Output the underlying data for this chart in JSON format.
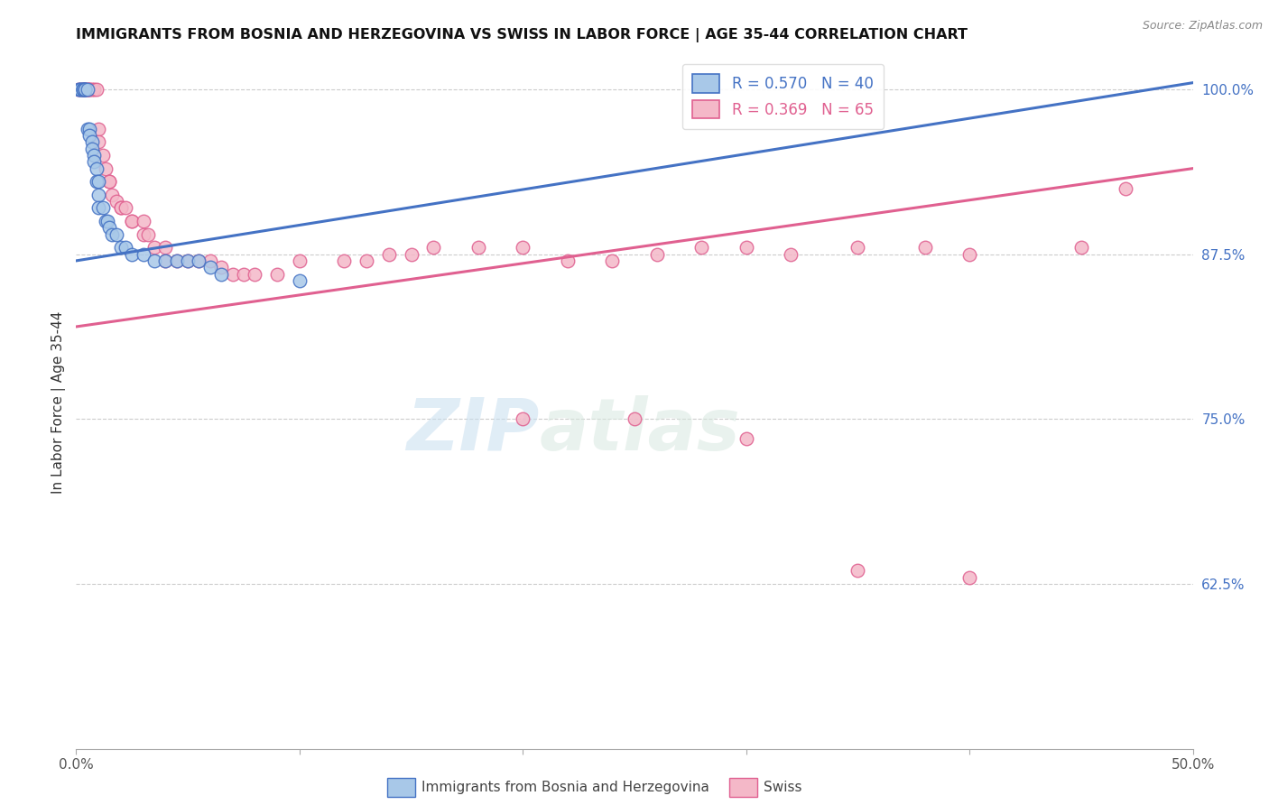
{
  "title": "IMMIGRANTS FROM BOSNIA AND HERZEGOVINA VS SWISS IN LABOR FORCE | AGE 35-44 CORRELATION CHART",
  "source": "Source: ZipAtlas.com",
  "ylabel": "In Labor Force | Age 35-44",
  "xlim": [
    0.0,
    0.5
  ],
  "ylim": [
    0.5,
    1.025
  ],
  "xtick_positions": [
    0.0,
    0.1,
    0.2,
    0.3,
    0.4,
    0.5
  ],
  "xticklabels": [
    "0.0%",
    "",
    "",
    "",
    "",
    "50.0%"
  ],
  "yticks_right": [
    0.625,
    0.75,
    0.875,
    1.0
  ],
  "ytick_labels_right": [
    "62.5%",
    "75.0%",
    "87.5%",
    "100.0%"
  ],
  "blue_R": 0.57,
  "blue_N": 40,
  "pink_R": 0.369,
  "pink_N": 65,
  "blue_color": "#a8c8e8",
  "pink_color": "#f4b8c8",
  "blue_edge_color": "#4472c4",
  "pink_edge_color": "#e06090",
  "blue_line_color": "#4472c4",
  "pink_line_color": "#e06090",
  "legend_label_blue": "Immigrants from Bosnia and Herzegovina",
  "legend_label_pink": "Swiss",
  "watermark_zip": "ZIP",
  "watermark_atlas": "atlas",
  "blue_line_x0": 0.0,
  "blue_line_y0": 0.87,
  "blue_line_x1": 0.5,
  "blue_line_y1": 1.005,
  "pink_line_x0": 0.0,
  "pink_line_y0": 0.82,
  "pink_line_x1": 0.5,
  "pink_line_y1": 0.94,
  "blue_scatter_x": [
    0.001,
    0.002,
    0.002,
    0.003,
    0.003,
    0.003,
    0.004,
    0.004,
    0.004,
    0.005,
    0.005,
    0.006,
    0.006,
    0.007,
    0.007,
    0.008,
    0.008,
    0.009,
    0.009,
    0.01,
    0.01,
    0.01,
    0.012,
    0.013,
    0.014,
    0.015,
    0.016,
    0.018,
    0.02,
    0.022,
    0.025,
    0.03,
    0.035,
    0.04,
    0.045,
    0.05,
    0.055,
    0.06,
    0.065,
    0.1
  ],
  "blue_scatter_y": [
    1.0,
    1.0,
    1.0,
    1.0,
    1.0,
    1.0,
    1.0,
    1.0,
    1.0,
    1.0,
    0.97,
    0.97,
    0.965,
    0.96,
    0.955,
    0.95,
    0.945,
    0.94,
    0.93,
    0.93,
    0.92,
    0.91,
    0.91,
    0.9,
    0.9,
    0.895,
    0.89,
    0.89,
    0.88,
    0.88,
    0.875,
    0.875,
    0.87,
    0.87,
    0.87,
    0.87,
    0.87,
    0.865,
    0.86,
    0.855
  ],
  "pink_scatter_x": [
    0.001,
    0.002,
    0.003,
    0.003,
    0.004,
    0.004,
    0.005,
    0.005,
    0.006,
    0.006,
    0.007,
    0.008,
    0.009,
    0.01,
    0.01,
    0.012,
    0.013,
    0.015,
    0.015,
    0.016,
    0.018,
    0.02,
    0.02,
    0.022,
    0.025,
    0.025,
    0.03,
    0.03,
    0.032,
    0.035,
    0.04,
    0.04,
    0.045,
    0.05,
    0.055,
    0.06,
    0.065,
    0.07,
    0.075,
    0.08,
    0.09,
    0.1,
    0.12,
    0.13,
    0.14,
    0.15,
    0.16,
    0.18,
    0.2,
    0.22,
    0.24,
    0.26,
    0.28,
    0.3,
    0.32,
    0.35,
    0.38,
    0.4,
    0.45,
    0.47,
    0.2,
    0.25,
    0.3,
    0.35,
    0.4
  ],
  "pink_scatter_y": [
    1.0,
    1.0,
    1.0,
    1.0,
    1.0,
    1.0,
    1.0,
    1.0,
    1.0,
    1.0,
    1.0,
    1.0,
    1.0,
    0.97,
    0.96,
    0.95,
    0.94,
    0.93,
    0.93,
    0.92,
    0.915,
    0.91,
    0.91,
    0.91,
    0.9,
    0.9,
    0.9,
    0.89,
    0.89,
    0.88,
    0.88,
    0.87,
    0.87,
    0.87,
    0.87,
    0.87,
    0.865,
    0.86,
    0.86,
    0.86,
    0.86,
    0.87,
    0.87,
    0.87,
    0.875,
    0.875,
    0.88,
    0.88,
    0.88,
    0.87,
    0.87,
    0.875,
    0.88,
    0.88,
    0.875,
    0.88,
    0.88,
    0.875,
    0.88,
    0.925,
    0.75,
    0.75,
    0.735,
    0.635,
    0.63
  ]
}
